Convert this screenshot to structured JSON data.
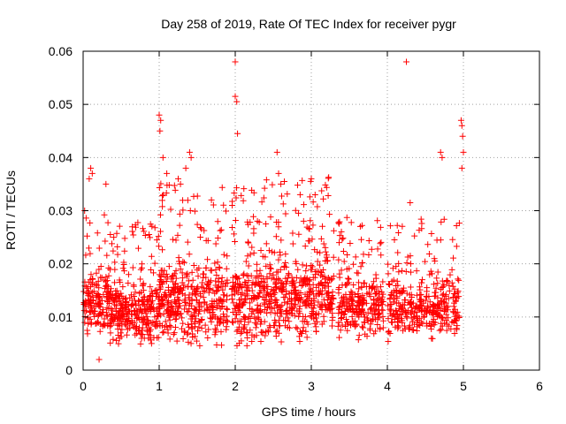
{
  "chart_data": {
    "type": "scatter",
    "title": "Day 258 of 2019, Rate Of TEC Index for receiver pygr",
    "xlabel": "GPS time / hours",
    "ylabel": "ROTI / TECUs",
    "xlim": [
      0,
      6
    ],
    "ylim": [
      0,
      0.06
    ],
    "xticks": [
      "0",
      "1",
      "2",
      "3",
      "4",
      "5",
      "6"
    ],
    "yticks": [
      "0",
      "0.01",
      "0.02",
      "0.03",
      "0.04",
      "0.05",
      "0.06"
    ],
    "grid": true,
    "marker": "+",
    "color": "#ff0000",
    "series": [
      {
        "name": "ROTI",
        "segments": [
          {
            "x_range": [
              0.0,
              0.35
            ],
            "y_center": 0.0125,
            "y_spread": 0.006,
            "count": 160
          },
          {
            "x_range": [
              0.35,
              1.0
            ],
            "y_center": 0.011,
            "y_spread": 0.006,
            "count": 320
          },
          {
            "x_range": [
              1.0,
              1.9
            ],
            "y_center": 0.013,
            "y_spread": 0.008,
            "count": 420
          },
          {
            "x_range": [
              1.95,
              2.4
            ],
            "y_center": 0.013,
            "y_spread": 0.008,
            "count": 220
          },
          {
            "x_range": [
              2.4,
              3.3
            ],
            "y_center": 0.014,
            "y_spread": 0.008,
            "count": 420
          },
          {
            "x_range": [
              3.35,
              3.95
            ],
            "y_center": 0.012,
            "y_spread": 0.006,
            "count": 260
          },
          {
            "x_range": [
              4.0,
              4.95
            ],
            "y_center": 0.012,
            "y_spread": 0.006,
            "count": 360
          }
        ],
        "highlights": [
          {
            "x": 2.0,
            "y": 0.058
          },
          {
            "x": 2.0,
            "y": 0.0515
          },
          {
            "x": 2.02,
            "y": 0.0505
          },
          {
            "x": 2.03,
            "y": 0.0445
          },
          {
            "x": 4.25,
            "y": 0.058
          },
          {
            "x": 1.0,
            "y": 0.048
          },
          {
            "x": 1.02,
            "y": 0.047
          },
          {
            "x": 1.01,
            "y": 0.045
          },
          {
            "x": 1.05,
            "y": 0.04
          },
          {
            "x": 1.1,
            "y": 0.037
          },
          {
            "x": 1.4,
            "y": 0.041
          },
          {
            "x": 1.42,
            "y": 0.04
          },
          {
            "x": 1.35,
            "y": 0.038
          },
          {
            "x": 2.55,
            "y": 0.041
          },
          {
            "x": 2.57,
            "y": 0.037
          },
          {
            "x": 2.6,
            "y": 0.035
          },
          {
            "x": 4.97,
            "y": 0.047
          },
          {
            "x": 4.98,
            "y": 0.046
          },
          {
            "x": 4.99,
            "y": 0.044
          },
          {
            "x": 5.0,
            "y": 0.041
          },
          {
            "x": 4.98,
            "y": 0.038
          },
          {
            "x": 4.7,
            "y": 0.041
          },
          {
            "x": 4.72,
            "y": 0.04
          },
          {
            "x": 0.1,
            "y": 0.038
          },
          {
            "x": 0.12,
            "y": 0.037
          },
          {
            "x": 0.08,
            "y": 0.036
          },
          {
            "x": 0.3,
            "y": 0.035
          },
          {
            "x": 0.21,
            "y": 0.002
          },
          {
            "x": 4.3,
            "y": 0.0315
          },
          {
            "x": 3.0,
            "y": 0.036
          },
          {
            "x": 3.05,
            "y": 0.033
          },
          {
            "x": 1.25,
            "y": 0.036
          },
          {
            "x": 1.28,
            "y": 0.035
          },
          {
            "x": 0.02,
            "y": 0.03
          }
        ]
      }
    ]
  }
}
